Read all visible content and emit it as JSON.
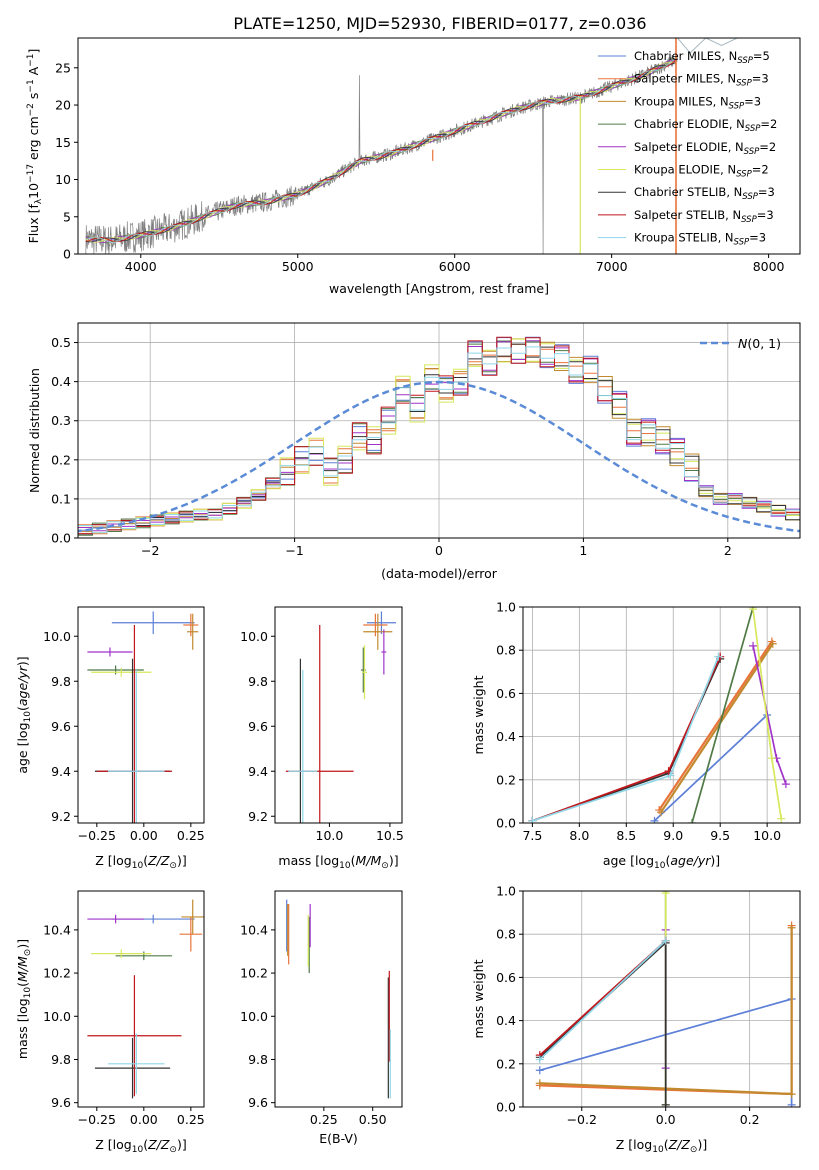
{
  "figure": {
    "title": "PLATE=1250, MJD=52930, FIBERID=0177, z=0.036"
  },
  "colors": {
    "chabrier_miles": "#5b7fd6",
    "salpeter_miles": "#e8743b",
    "kroupa_miles": "#c28a2e",
    "chabrier_elodie": "#4f7a45",
    "salpeter_elodie": "#a033c9",
    "kroupa_elodie": "#d7e85c",
    "chabrier_stelib": "#333333",
    "salpeter_stelib": "#c0161c",
    "kroupa_stelib": "#8fd6e8",
    "data": "#808080",
    "normal_curve": "#5b8bd6"
  },
  "chart_data": [
    {
      "id": "spectrum",
      "type": "line",
      "xlabel": "wavelength [Angstrom, rest frame]",
      "ylabel": "Flux [f_λ10^-17 erg cm^-2 s^-1 A^-1]",
      "xlim": [
        3600,
        8200
      ],
      "ylim": [
        0,
        29
      ],
      "xticks": [
        4000,
        5000,
        6000,
        7000,
        8000
      ],
      "yticks": [
        0,
        5,
        10,
        15,
        20,
        25
      ],
      "grid": false,
      "legend_position": "top-right",
      "legend": [
        {
          "key": "chabrier_miles",
          "label": "Chabrier MILES, N",
          "sub": "SSP",
          "tail": "=5"
        },
        {
          "key": "salpeter_miles",
          "label": "Salpeter MILES, N",
          "sub": "SSP",
          "tail": "=3"
        },
        {
          "key": "kroupa_miles",
          "label": "Kroupa MILES, N",
          "sub": "SSP",
          "tail": "=3"
        },
        {
          "key": "chabrier_elodie",
          "label": "Chabrier ELODIE, N",
          "sub": "SSP",
          "tail": "=2"
        },
        {
          "key": "salpeter_elodie",
          "label": "Salpeter ELODIE, N",
          "sub": "SSP",
          "tail": "=2"
        },
        {
          "key": "kroupa_elodie",
          "label": "Kroupa ELODIE, N",
          "sub": "SSP",
          "tail": "=2"
        },
        {
          "key": "chabrier_stelib",
          "label": "Chabrier STELIB, N",
          "sub": "SSP",
          "tail": "=3"
        },
        {
          "key": "salpeter_stelib",
          "label": "Salpeter STELIB, N",
          "sub": "SSP",
          "tail": "=3"
        },
        {
          "key": "kroupa_stelib",
          "label": "Kroupa STELIB, N",
          "sub": "SSP",
          "tail": "=3"
        }
      ],
      "continuum": {
        "x": [
          3650,
          3800,
          4000,
          4200,
          4400,
          4600,
          4800,
          5000,
          5200,
          5400,
          5600,
          5800,
          6000,
          6200,
          6400,
          6600,
          6800,
          7000,
          7200,
          7400
        ],
        "y": [
          2.0,
          1.8,
          2.5,
          3.5,
          5.0,
          6.5,
          7.0,
          8.0,
          10.0,
          12.5,
          13.5,
          15.0,
          16.5,
          18.0,
          19.5,
          20.5,
          21.0,
          22.5,
          24.0,
          26.0
        ]
      }
    },
    {
      "id": "residuals",
      "type": "histogram",
      "xlabel": "(data-model)/error",
      "ylabel": "Normed distribution",
      "xlim": [
        -2.5,
        2.5
      ],
      "ylim": [
        0,
        0.55
      ],
      "xticks": [
        -2,
        -1,
        0,
        1,
        2
      ],
      "yticks": [
        0.0,
        0.1,
        0.2,
        0.3,
        0.4,
        0.5
      ],
      "grid": true,
      "legend_position": "top-right",
      "legend_label": "N(0,1)",
      "bin_width": 0.1,
      "bin_start": -2.5,
      "values": [
        0.02,
        0.025,
        0.03,
        0.035,
        0.04,
        0.045,
        0.05,
        0.055,
        0.06,
        0.06,
        0.075,
        0.09,
        0.11,
        0.14,
        0.17,
        0.2,
        0.22,
        0.17,
        0.2,
        0.26,
        0.25,
        0.3,
        0.38,
        0.33,
        0.41,
        0.38,
        0.4,
        0.47,
        0.45,
        0.48,
        0.48,
        0.48,
        0.47,
        0.46,
        0.43,
        0.43,
        0.38,
        0.34,
        0.27,
        0.27,
        0.25,
        0.22,
        0.18,
        0.12,
        0.1,
        0.1,
        0.09,
        0.08,
        0.07,
        0.06,
        0.05,
        0.04,
        0.04,
        0.03,
        0.03
      ]
    },
    {
      "id": "age_vs_z",
      "type": "scatter",
      "xlabel": "Z [log10(Z/Z⊙)]",
      "ylabel": "age  [log10(age/yr)]",
      "xlim": [
        -0.35,
        0.32
      ],
      "ylim": [
        9.17,
        10.13
      ],
      "xticks": [
        -0.25,
        0.0,
        0.25
      ],
      "yticks": [
        9.2,
        9.4,
        9.6,
        9.8,
        10.0
      ],
      "points": [
        {
          "key": "chabrier_miles",
          "x": 0.05,
          "y": 10.06,
          "xerr": 0.22,
          "yerr": 0.05
        },
        {
          "key": "salpeter_miles",
          "x": 0.25,
          "y": 10.05,
          "xerr": 0.04,
          "yerr": 0.05
        },
        {
          "key": "kroupa_miles",
          "x": 0.26,
          "y": 10.02,
          "xerr": 0.03,
          "yerr": 0.08
        },
        {
          "key": "chabrier_elodie",
          "x": -0.15,
          "y": 9.85,
          "xerr": 0.15,
          "yerr": 0.02
        },
        {
          "key": "salpeter_elodie",
          "x": -0.18,
          "y": 9.93,
          "xerr": 0.12,
          "yerr": 0.02
        },
        {
          "key": "kroupa_elodie",
          "x": -0.12,
          "y": 9.84,
          "xerr": 0.16,
          "yerr": 0.02
        },
        {
          "key": "chabrier_stelib",
          "x": -0.06,
          "y": 9.4,
          "xerr": 0.2,
          "yerr": 0.5
        },
        {
          "key": "salpeter_stelib",
          "x": -0.05,
          "y": 9.4,
          "xerr": 0.2,
          "yerr": 0.65
        },
        {
          "key": "kroupa_stelib",
          "x": -0.04,
          "y": 9.4,
          "xerr": 0.15,
          "yerr": 0.45
        }
      ]
    },
    {
      "id": "age_vs_mass",
      "type": "scatter",
      "xlabel": "mass [log10(M/M⊙)]",
      "ylabel": "",
      "xlim": [
        9.55,
        10.6
      ],
      "ylim": [
        9.17,
        10.13
      ],
      "xticks": [
        10.0,
        10.5
      ],
      "yticks": [
        9.2,
        9.4,
        9.6,
        9.8,
        10.0
      ],
      "points": [
        {
          "key": "chabrier_miles",
          "x": 10.43,
          "y": 10.06,
          "xerr": 0.12,
          "yerr": 0.05
        },
        {
          "key": "salpeter_miles",
          "x": 10.38,
          "y": 10.05,
          "xerr": 0.1,
          "yerr": 0.05
        },
        {
          "key": "kroupa_miles",
          "x": 10.4,
          "y": 10.02,
          "xerr": 0.12,
          "yerr": 0.08
        },
        {
          "key": "chabrier_elodie",
          "x": 10.28,
          "y": 9.85,
          "xerr": 0.02,
          "yerr": 0.1
        },
        {
          "key": "salpeter_elodie",
          "x": 10.45,
          "y": 9.93,
          "xerr": 0.02,
          "yerr": 0.1
        },
        {
          "key": "kroupa_elodie",
          "x": 10.29,
          "y": 9.84,
          "xerr": 0.02,
          "yerr": 0.12
        },
        {
          "key": "chabrier_stelib",
          "x": 9.76,
          "y": 9.4,
          "xerr": 0.02,
          "yerr": 0.5
        },
        {
          "key": "salpeter_stelib",
          "x": 9.92,
          "y": 9.4,
          "xerr": 0.28,
          "yerr": 0.65
        },
        {
          "key": "kroupa_stelib",
          "x": 9.78,
          "y": 9.4,
          "xerr": 0.12,
          "yerr": 0.45
        }
      ]
    },
    {
      "id": "weight_vs_age",
      "type": "line",
      "xlabel": "age  [log10(age/yr)]",
      "ylabel": "mass weight",
      "xlim": [
        7.4,
        10.35
      ],
      "ylim": [
        0,
        1.0
      ],
      "xticks": [
        7.5,
        8.0,
        8.5,
        9.0,
        9.5,
        10.0
      ],
      "yticks": [
        0.0,
        0.2,
        0.4,
        0.6,
        0.8,
        1.0
      ],
      "grid": true,
      "series": [
        {
          "key": "chabrier_miles",
          "x": [
            8.8,
            10.0
          ],
          "y": [
            0.01,
            0.5
          ]
        },
        {
          "key": "salpeter_miles",
          "x": [
            8.85,
            10.05
          ],
          "y": [
            0.06,
            0.84
          ]
        },
        {
          "key": "kroupa_miles",
          "x": [
            8.87,
            10.06
          ],
          "y": [
            0.05,
            0.83
          ]
        },
        {
          "key": "chabrier_elodie",
          "x": [
            9.2,
            9.85
          ],
          "y": [
            0.0,
            1.0
          ]
        },
        {
          "key": "salpeter_elodie",
          "x": [
            9.85,
            10.1,
            10.2
          ],
          "y": [
            0.82,
            0.3,
            0.18
          ]
        },
        {
          "key": "kroupa_elodie",
          "x": [
            9.85,
            10.05,
            10.15
          ],
          "y": [
            0.99,
            0.3,
            0.02
          ]
        },
        {
          "key": "chabrier_stelib",
          "x": [
            7.5,
            8.95,
            9.5
          ],
          "y": [
            0.01,
            0.23,
            0.76
          ]
        },
        {
          "key": "salpeter_stelib",
          "x": [
            7.5,
            8.95,
            9.5
          ],
          "y": [
            0.01,
            0.24,
            0.77
          ]
        },
        {
          "key": "kroupa_stelib",
          "x": [
            7.5,
            8.97,
            9.48
          ],
          "y": [
            0.01,
            0.22,
            0.77
          ]
        }
      ]
    },
    {
      "id": "mass_vs_z",
      "type": "scatter",
      "xlabel": "Z [log10(Z/Z⊙)]",
      "ylabel": "mass [log10(M/M⊙)]",
      "xlim": [
        -0.35,
        0.32
      ],
      "ylim": [
        9.58,
        10.58
      ],
      "xticks": [
        -0.25,
        0.0,
        0.25
      ],
      "yticks": [
        9.6,
        9.8,
        10.0,
        10.2,
        10.4
      ],
      "points": [
        {
          "key": "chabrier_miles",
          "x": 0.05,
          "y": 10.45,
          "xerr": 0.22,
          "yerr": 0.02
        },
        {
          "key": "salpeter_miles",
          "x": 0.25,
          "y": 10.38,
          "xerr": 0.06,
          "yerr": 0.08
        },
        {
          "key": "kroupa_miles",
          "x": 0.26,
          "y": 10.46,
          "xerr": 0.06,
          "yerr": 0.08
        },
        {
          "key": "chabrier_elodie",
          "x": 0.0,
          "y": 10.28,
          "xerr": 0.15,
          "yerr": 0.02
        },
        {
          "key": "salpeter_elodie",
          "x": -0.15,
          "y": 10.45,
          "xerr": 0.15,
          "yerr": 0.02
        },
        {
          "key": "kroupa_elodie",
          "x": -0.12,
          "y": 10.29,
          "xerr": 0.16,
          "yerr": 0.02
        },
        {
          "key": "chabrier_stelib",
          "x": -0.06,
          "y": 9.76,
          "xerr": 0.2,
          "yerr": 0.14
        },
        {
          "key": "salpeter_stelib",
          "x": -0.05,
          "y": 9.91,
          "xerr": 0.25,
          "yerr": 0.28
        },
        {
          "key": "kroupa_stelib",
          "x": -0.04,
          "y": 9.78,
          "xerr": 0.15,
          "yerr": 0.14
        }
      ]
    },
    {
      "id": "mass_vs_ebv",
      "type": "scatter",
      "xlabel": "E(B-V)",
      "ylabel": "",
      "xlim": [
        0.0,
        0.65
      ],
      "ylim": [
        9.58,
        10.58
      ],
      "xticks": [
        0.25,
        0.5
      ],
      "yticks": [
        9.6,
        9.8,
        10.0,
        10.2,
        10.4
      ],
      "points": [
        {
          "key": "chabrier_miles",
          "x": 0.06,
          "y": 10.42,
          "yerr": 0.12
        },
        {
          "key": "salpeter_miles",
          "x": 0.07,
          "y": 10.38,
          "yerr": 0.14
        },
        {
          "key": "kroupa_miles",
          "x": 0.065,
          "y": 10.4,
          "yerr": 0.12
        },
        {
          "key": "chabrier_elodie",
          "x": 0.175,
          "y": 10.33,
          "yerr": 0.13
        },
        {
          "key": "salpeter_elodie",
          "x": 0.18,
          "y": 10.42,
          "yerr": 0.1
        },
        {
          "key": "kroupa_elodie",
          "x": 0.17,
          "y": 10.35,
          "yerr": 0.12
        },
        {
          "key": "chabrier_stelib",
          "x": 0.58,
          "y": 9.9,
          "yerr": 0.28
        },
        {
          "key": "salpeter_stelib",
          "x": 0.585,
          "y": 10.0,
          "yerr": 0.21
        },
        {
          "key": "kroupa_stelib",
          "x": 0.59,
          "y": 9.78,
          "yerr": 0.16
        }
      ]
    },
    {
      "id": "weight_vs_z",
      "type": "line",
      "xlabel": "Z [log10(Z/Z⊙)]",
      "ylabel": "mass weight",
      "xlim": [
        -0.34,
        0.32
      ],
      "ylim": [
        0,
        1.0
      ],
      "xticks": [
        -0.2,
        0.0,
        0.2
      ],
      "yticks": [
        0.0,
        0.2,
        0.4,
        0.6,
        0.8,
        1.0
      ],
      "grid": true,
      "series": [
        {
          "key": "chabrier_miles",
          "x": [
            -0.3,
            0.3,
            0.3
          ],
          "y": [
            0.17,
            0.5,
            0.01
          ]
        },
        {
          "key": "salpeter_miles",
          "x": [
            -0.3,
            0.3,
            0.3
          ],
          "y": [
            0.1,
            0.06,
            0.84
          ]
        },
        {
          "key": "kroupa_miles",
          "x": [
            -0.3,
            0.3,
            0.3
          ],
          "y": [
            0.11,
            0.06,
            0.83
          ]
        },
        {
          "key": "chabrier_elodie",
          "x": [
            0.0,
            0.0
          ],
          "y": [
            0.0,
            1.0
          ]
        },
        {
          "key": "salpeter_elodie",
          "x": [
            0.0,
            0.0
          ],
          "y": [
            0.18,
            0.82
          ]
        },
        {
          "key": "kroupa_elodie",
          "x": [
            0.0,
            0.0
          ],
          "y": [
            0.01,
            0.99
          ]
        },
        {
          "key": "chabrier_stelib",
          "x": [
            -0.3,
            0.0,
            0.0
          ],
          "y": [
            0.23,
            0.76,
            0.01
          ]
        },
        {
          "key": "salpeter_stelib",
          "x": [
            -0.3,
            0.0
          ],
          "y": [
            0.24,
            0.77
          ]
        },
        {
          "key": "kroupa_stelib",
          "x": [
            -0.3,
            0.0
          ],
          "y": [
            0.22,
            0.77
          ]
        }
      ]
    }
  ]
}
